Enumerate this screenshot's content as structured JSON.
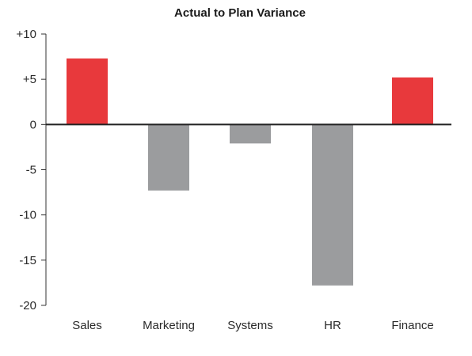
{
  "chart_data": {
    "type": "bar",
    "title": "Actual to Plan Variance",
    "xlabel": "",
    "ylabel": "",
    "categories": [
      "Sales",
      "Marketing",
      "Systems",
      "HR",
      "Finance"
    ],
    "values": [
      7.3,
      -7.3,
      -2.1,
      -17.8,
      5.2
    ],
    "ylim": [
      -20,
      10
    ],
    "yticks": [
      10,
      5,
      0,
      -5,
      -10,
      -15,
      -20
    ],
    "ytick_labels": [
      "+10",
      "+5",
      "0",
      "-5",
      "-10",
      "-15",
      "-20"
    ],
    "grid": false,
    "legend": "none",
    "colors": {
      "positive": "#e8393c",
      "negative": "#9b9c9e",
      "axis": "#333333",
      "baseline": "#222222"
    }
  }
}
